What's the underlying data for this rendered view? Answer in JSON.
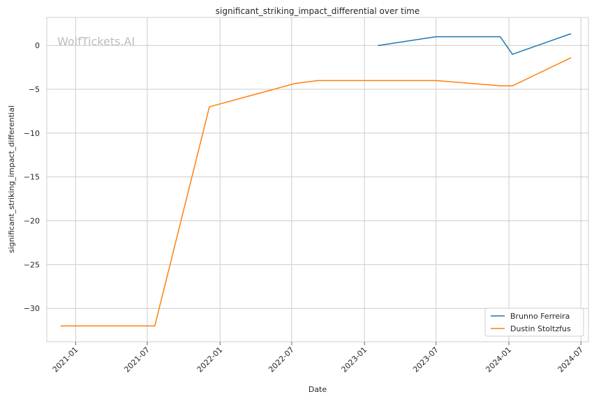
{
  "chart_data": {
    "type": "line",
    "title": "significant_striking_impact_differential over time",
    "xlabel": "Date",
    "ylabel": "significant_striking_impact_differential",
    "watermark": "WolfTickets.AI",
    "x_ticks": [
      "2021-01",
      "2021-07",
      "2022-01",
      "2022-07",
      "2023-01",
      "2023-07",
      "2024-01",
      "2024-07"
    ],
    "y_ticks": [
      0,
      -5,
      -10,
      -15,
      -20,
      -25,
      -30
    ],
    "xlim": [
      "2020-10-20",
      "2024-07-20"
    ],
    "ylim": [
      -33.8,
      3.2
    ],
    "grid": true,
    "legend_position": "lower-right",
    "series": [
      {
        "name": "Brunno Ferreira",
        "color": "#1f77b4",
        "points": [
          {
            "x": "2023-02-05",
            "y": 0
          },
          {
            "x": "2023-07-01",
            "y": 1
          },
          {
            "x": "2023-12-10",
            "y": 1
          },
          {
            "x": "2024-01-10",
            "y": -1
          },
          {
            "x": "2024-06-05",
            "y": 1.33
          }
        ]
      },
      {
        "name": "Dustin Stoltzfus",
        "color": "#ff7f0e",
        "points": [
          {
            "x": "2020-11-25",
            "y": -32
          },
          {
            "x": "2021-07-20",
            "y": -32
          },
          {
            "x": "2021-12-05",
            "y": -7
          },
          {
            "x": "2022-07-10",
            "y": -4.33
          },
          {
            "x": "2022-09-05",
            "y": -4
          },
          {
            "x": "2023-07-01",
            "y": -4
          },
          {
            "x": "2023-12-10",
            "y": -4.6
          },
          {
            "x": "2024-01-10",
            "y": -4.6
          },
          {
            "x": "2024-06-05",
            "y": -1.42
          }
        ]
      }
    ]
  }
}
